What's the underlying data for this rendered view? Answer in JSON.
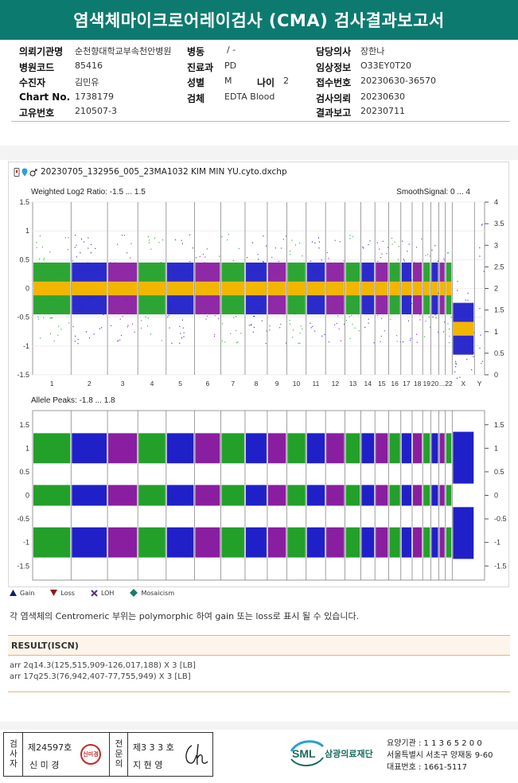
{
  "report": {
    "title": "염색체마이크로어레이검사 (CMA) 검사결과보고서"
  },
  "info": {
    "institution_label": "의뢰기관명",
    "institution_value": "순천향대학교부속천안병원",
    "ward_label": "병동",
    "ward_value": "/ -",
    "doctor_label": "담당의사",
    "doctor_value": "장한나",
    "hospital_code_label": "병원코드",
    "hospital_code_value": "85416",
    "department_label": "진료과",
    "department_value": "PD",
    "clinical_label": "임상정보",
    "clinical_value": "O33EY0T20",
    "patient_label": "수진자",
    "patient_value": "김민유",
    "sex_label": "성별",
    "sex_value": "M",
    "age_label": "나이",
    "age_value": "2",
    "receipt_label": "접수번호",
    "receipt_value": "20230630-36570",
    "chart_label": "Chart No.",
    "chart_value": "1738179",
    "specimen_label": "검체",
    "specimen_value": "EDTA Blood",
    "request_label": "검사의뢰",
    "request_value": "20230630",
    "unique_label": "고유번호",
    "unique_value": "210507-3",
    "result_date_label": "결과보고",
    "result_date_value": "20230711"
  },
  "chart_header": {
    "filename": "20230705_132956_005_23MA1032 KIM MIN YU.cyto.dxchp"
  },
  "chart_data": [
    {
      "type": "scatter",
      "title": "Weighted Log2 Ratio: -1.5 ... 1.5",
      "secondary_title": "SmoothSignal: 0 ... 4",
      "ylim": [
        -1.5,
        1.5
      ],
      "y2lim": [
        0,
        4
      ],
      "yticks": [
        "1.5",
        "1",
        "0.5",
        "0",
        "-0.5",
        "-1",
        "-1.5"
      ],
      "y2ticks": [
        "4",
        "3.5",
        "3",
        "2.5",
        "2",
        "1.5",
        "1",
        "0.5",
        "0"
      ],
      "categories": [
        "1",
        "2",
        "3",
        "4",
        "5",
        "6",
        "7",
        "8",
        "9",
        "10",
        "11",
        "12",
        "13",
        "14",
        "15",
        "16",
        "17",
        "18",
        "19",
        "20",
        "21",
        "22",
        "X",
        "Y"
      ],
      "xlabels": [
        "1",
        "2",
        "3",
        "4",
        "5",
        "6",
        "7",
        "8",
        "9",
        "10",
        "11",
        "12",
        "13",
        "14",
        "15",
        "16",
        "17",
        "18",
        "19",
        "20",
        "...",
        "22",
        "X",
        "Y"
      ],
      "series": [
        {
          "name": "Weighted Log2 Ratio",
          "center": 0
        },
        {
          "name": "SmoothSignal (X)",
          "value": 1
        }
      ],
      "colors": [
        "#22a02a",
        "#2020c8",
        "#8a1ea0"
      ],
      "smooth_color": "#f2b600"
    },
    {
      "type": "scatter",
      "title": "Allele Peaks: -1.8 ... 1.8",
      "ylim": [
        -1.8,
        1.8
      ],
      "yticks": [
        "1.5",
        "1",
        "0.5",
        "0",
        "-0.5",
        "-1",
        "-1.5"
      ],
      "bands": [
        1.0,
        0.0,
        -1.0
      ]
    }
  ],
  "legend": {
    "gain": "Gain",
    "loss": "Loss",
    "loh": "LOH",
    "mosaicism": "Mosaicism"
  },
  "note": "각 염색체의 Centromeric 부위는 polymorphic 하여 gain 또는 loss로 표시 될 수 있습니다.",
  "result": {
    "heading": "RESULT(ISCN)",
    "lines": [
      "arr 2q14.3(125,515,909-126,017,188) X 3 [LB]",
      "arr 17q25.3(76,942,407-77,755,949) X 3 [LB]"
    ]
  },
  "signature": {
    "tester_label": "검사자",
    "tester_no": "제24597호",
    "tester_name": "신 미 경",
    "specialist_label": "전문의",
    "specialist_no": "제3 3 3 호",
    "specialist_name": "지 현 영",
    "stamp_text": "신미경"
  },
  "org": {
    "logo": "SML",
    "name": "삼광의료재단",
    "code_line": "요양기관 : 1 1 3 6 5 2 0 0",
    "address_line": "서울특별시 서초구 양재동 9-60",
    "phone_line": "대표번호 : 1661-5117"
  }
}
